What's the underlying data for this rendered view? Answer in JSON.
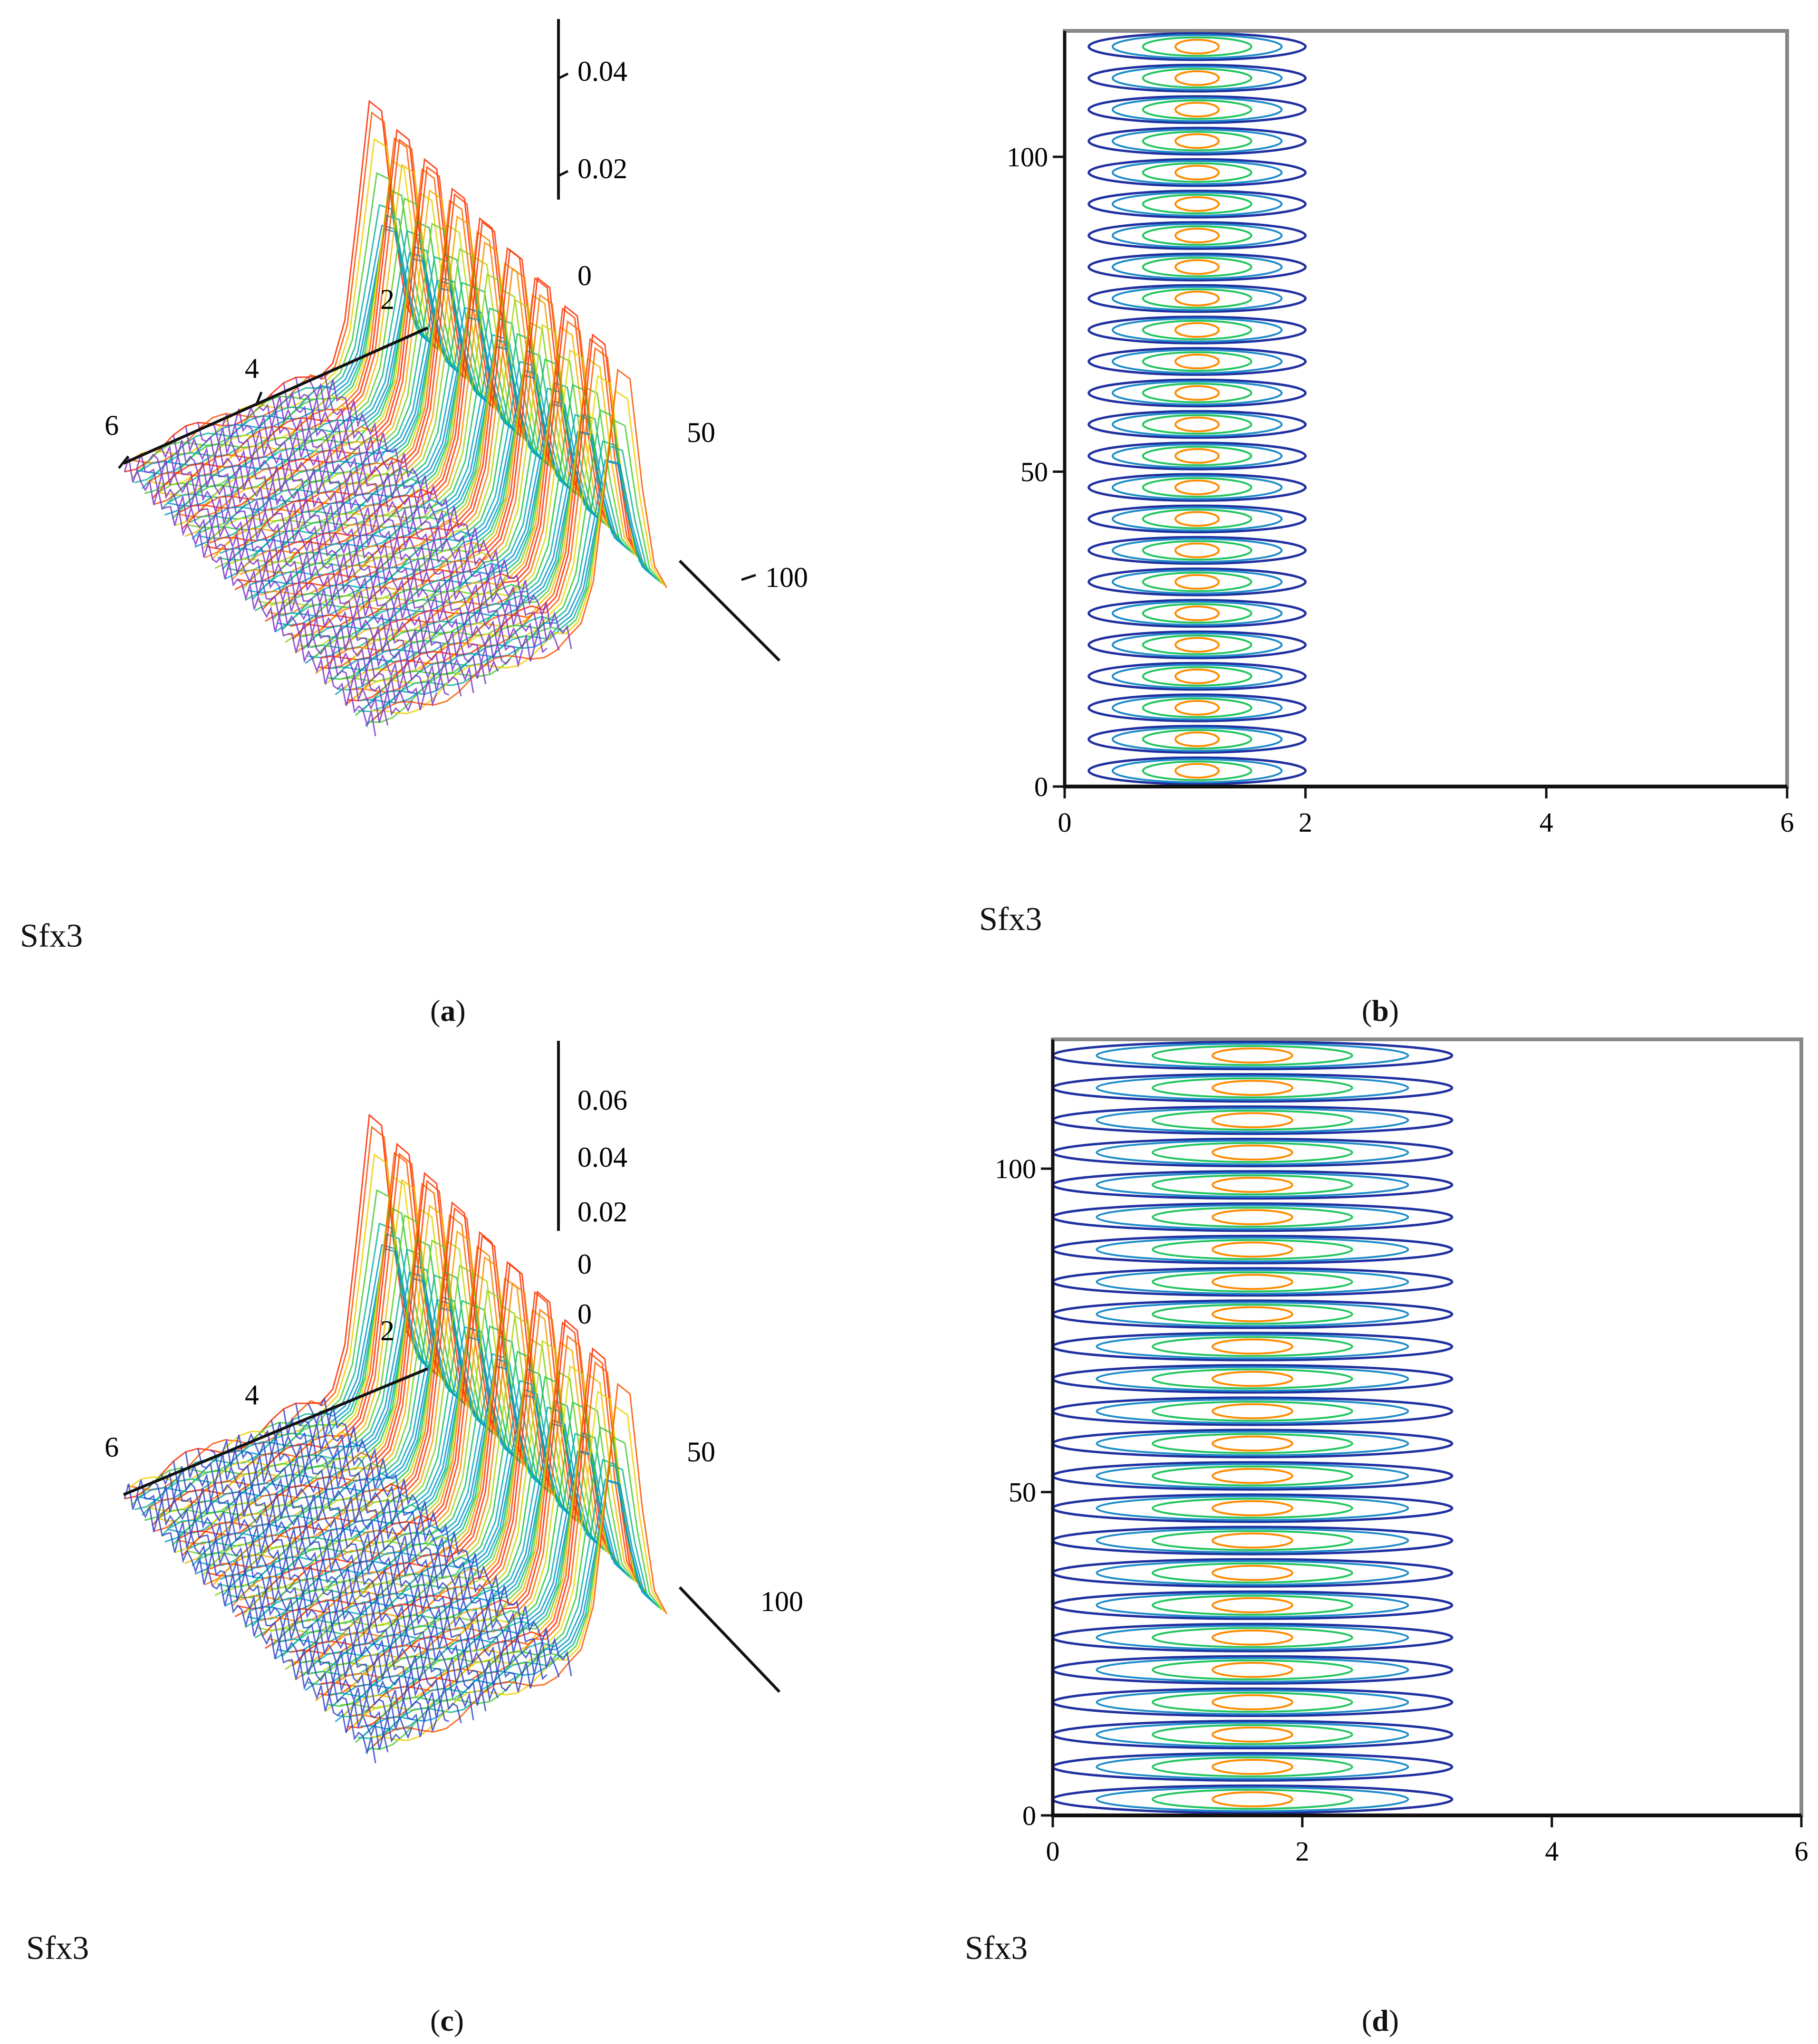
{
  "chart_data": [
    {
      "id": "a",
      "type": "surface",
      "plot_label": "Sfx3",
      "caption": "a",
      "x_ticks": [
        "2",
        "4",
        "6"
      ],
      "y_ticks": [
        "50",
        "100"
      ],
      "z_ticks": [
        "0.04",
        "0.02",
        "0"
      ],
      "colors": {
        "low": "#7a2ec8",
        "high": "#ff2a00"
      }
    },
    {
      "id": "b",
      "type": "contour",
      "plot_label": "Sfx3",
      "caption": "b",
      "xlim": [
        0,
        6
      ],
      "ylim": [
        0,
        120
      ],
      "x_ticks": [
        "0",
        "2",
        "4",
        "6"
      ],
      "y_ticks": [
        "0",
        "50",
        "100"
      ],
      "band": [
        0.2,
        2.0
      ],
      "rings": 24
    },
    {
      "id": "c",
      "type": "surface",
      "plot_label": "Sfx3",
      "caption": "c",
      "x_ticks": [
        "2",
        "4",
        "6"
      ],
      "y_ticks": [
        "50",
        "100"
      ],
      "z_ticks": [
        "0.06",
        "0.04",
        "0.02",
        "0",
        "0"
      ],
      "colors": {
        "low": "#2a3fc8",
        "high": "#ff2a00"
      }
    },
    {
      "id": "d",
      "type": "contour",
      "plot_label": "Sfx3",
      "caption": "d",
      "xlim": [
        0,
        6
      ],
      "ylim": [
        0,
        120
      ],
      "x_ticks": [
        "0",
        "2",
        "4",
        "6"
      ],
      "y_ticks": [
        "0",
        "50",
        "100"
      ],
      "band": [
        0.0,
        3.2
      ],
      "rings": 24
    }
  ],
  "captions": {
    "a": "a",
    "b": "b",
    "c": "c",
    "d": "d"
  },
  "colors": {
    "axis": "#111111",
    "frame": "#888888",
    "contour_outer": "#2030a0",
    "contour_mid": "#1e8cc8",
    "contour_inner": "#22c55e",
    "contour_core": "#ff8a00"
  }
}
